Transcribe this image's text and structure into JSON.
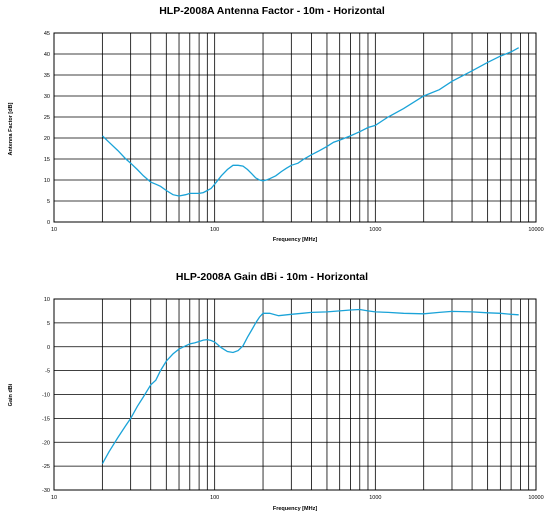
{
  "chart_data": [
    {
      "type": "line",
      "title": "HLP-2008A Antenna Factor - 10m - Horizontal",
      "xlabel": "Frequency [MHz]",
      "ylabel": "Antenna Factor [dB]",
      "xscale": "log",
      "xlim": [
        10,
        10000
      ],
      "ylim": [
        0,
        45
      ],
      "x_ticks": [
        "10",
        "100",
        "1000",
        "10000"
      ],
      "y_ticks": [
        "0",
        "5",
        "10",
        "15",
        "20",
        "25",
        "30",
        "35",
        "40",
        "45"
      ],
      "grid": true,
      "line_color": "#1aa3d8",
      "series": [
        {
          "x": [
            20,
            22,
            25,
            28,
            30,
            33,
            36,
            40,
            43,
            46,
            50,
            55,
            60,
            66,
            70,
            75,
            80,
            85,
            90,
            95,
            100,
            110,
            120,
            130,
            140,
            150,
            160,
            170,
            180,
            190,
            200,
            210,
            220,
            240,
            260,
            280,
            300,
            330,
            360,
            400,
            450,
            500,
            550,
            600,
            700,
            800,
            900,
            1000,
            1200,
            1500,
            2000,
            2500,
            3000,
            4000,
            5000,
            6000,
            7000,
            7800
          ],
          "y": [
            20.5,
            19.0,
            17.0,
            15.0,
            14.0,
            12.5,
            11.0,
            9.5,
            9.0,
            8.5,
            7.5,
            6.5,
            6.2,
            6.5,
            6.8,
            6.8,
            6.8,
            7.0,
            7.5,
            8.0,
            9.0,
            11.0,
            12.5,
            13.5,
            13.5,
            13.3,
            12.5,
            11.5,
            10.5,
            10.0,
            9.8,
            10.0,
            10.3,
            11.0,
            12.0,
            12.8,
            13.5,
            14.0,
            15.0,
            16.0,
            17.0,
            18.0,
            19.0,
            19.5,
            20.5,
            21.5,
            22.5,
            23.0,
            25.0,
            27.0,
            30.0,
            31.5,
            33.5,
            36.0,
            38.0,
            39.5,
            40.5,
            41.5
          ]
        }
      ]
    },
    {
      "type": "line",
      "title": "HLP-2008A Gain dBi - 10m - Horizontal",
      "xlabel": "Frequency [MHz]",
      "ylabel": "Gain dBi",
      "xscale": "log",
      "xlim": [
        10,
        10000
      ],
      "ylim": [
        -30,
        10
      ],
      "x_ticks": [
        "10",
        "100",
        "1000",
        "10000"
      ],
      "y_ticks": [
        "-30",
        "-25",
        "-20",
        "-15",
        "-10",
        "-5",
        "0",
        "5",
        "10"
      ],
      "grid": true,
      "line_color": "#1aa3d8",
      "series": [
        {
          "x": [
            20,
            22,
            25,
            28,
            30,
            33,
            36,
            40,
            43,
            46,
            50,
            55,
            60,
            66,
            70,
            75,
            80,
            85,
            90,
            95,
            100,
            110,
            120,
            130,
            140,
            150,
            160,
            170,
            180,
            190,
            200,
            220,
            250,
            300,
            350,
            400,
            500,
            600,
            700,
            800,
            900,
            1000,
            1200,
            1500,
            2000,
            2500,
            3000,
            4000,
            5000,
            6000,
            7000,
            7800
          ],
          "y": [
            -24.5,
            -22.0,
            -19.0,
            -16.5,
            -15.0,
            -12.5,
            -10.5,
            -8.0,
            -7.0,
            -5.0,
            -3.0,
            -1.5,
            -0.5,
            0.2,
            0.6,
            0.8,
            1.1,
            1.4,
            1.5,
            1.3,
            1.0,
            -0.2,
            -1.0,
            -1.2,
            -0.8,
            0.2,
            2.0,
            3.5,
            5.0,
            6.2,
            7.0,
            7.0,
            6.5,
            6.8,
            7.0,
            7.2,
            7.3,
            7.5,
            7.7,
            7.8,
            7.5,
            7.3,
            7.2,
            7.0,
            6.9,
            7.2,
            7.4,
            7.3,
            7.1,
            7.0,
            6.8,
            6.7
          ]
        }
      ]
    }
  ]
}
